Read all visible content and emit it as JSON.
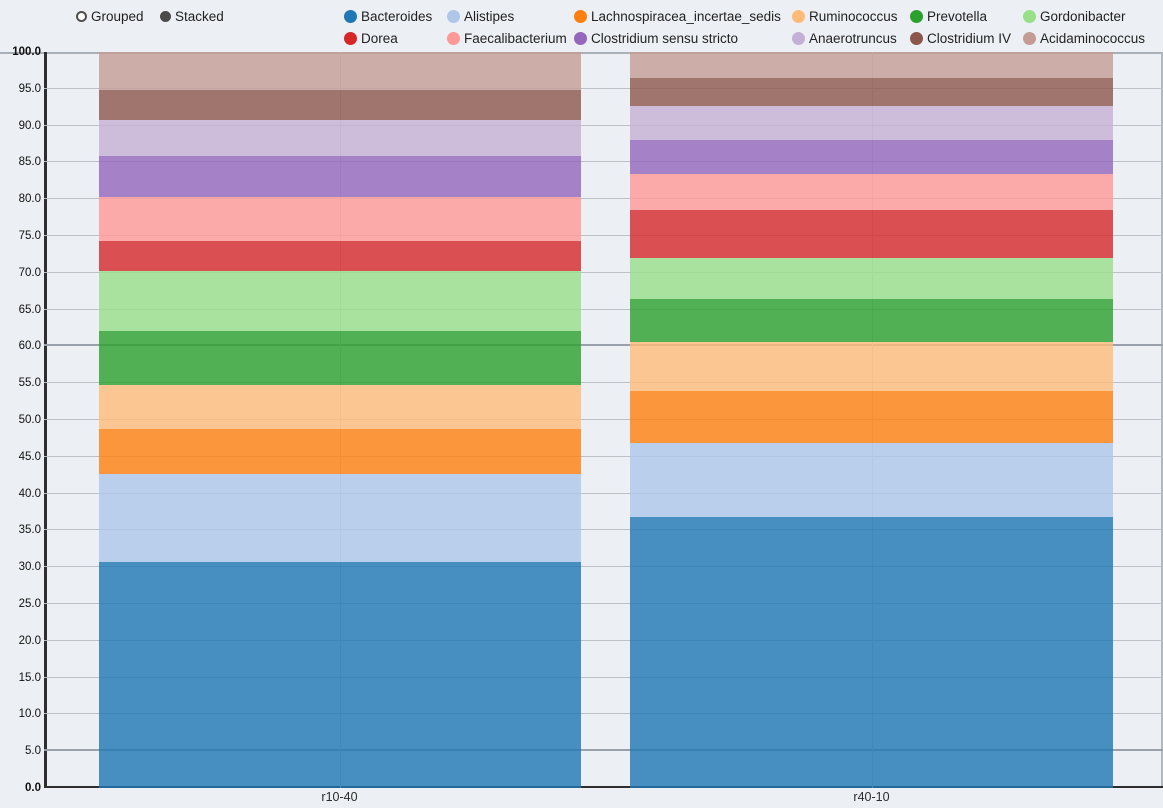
{
  "controls": {
    "grouped_label": "Grouped",
    "stacked_label": "Stacked",
    "selected_mode": "Stacked"
  },
  "chart_data": {
    "type": "bar",
    "stacked": true,
    "title": "",
    "xlabel": "",
    "ylabel": "",
    "categories": [
      "r10-40",
      "r40-10"
    ],
    "series": [
      {
        "name": "Bacteroides",
        "color": "#1f77b4",
        "values": [
          30.7,
          36.8
        ]
      },
      {
        "name": "Alistipes",
        "color": "#aec7e8",
        "values": [
          12.0,
          10.1
        ]
      },
      {
        "name": "Lachnospiracea_incertae_sedis",
        "color": "#ff7f0e",
        "values": [
          6.1,
          7.0
        ]
      },
      {
        "name": "Ruminococcus",
        "color": "#ffbb78",
        "values": [
          6.0,
          6.7
        ]
      },
      {
        "name": "Prevotella",
        "color": "#2ca02c",
        "values": [
          7.3,
          5.8
        ]
      },
      {
        "name": "Gordonibacter",
        "color": "#98df8a",
        "values": [
          8.1,
          5.6
        ]
      },
      {
        "name": "Dorea",
        "color": "#d62728",
        "values": [
          4.1,
          6.5
        ]
      },
      {
        "name": "Faecalibacterium",
        "color": "#ff9896",
        "values": [
          6.0,
          4.9
        ]
      },
      {
        "name": "Clostridium sensu stricto",
        "color": "#9467bd",
        "values": [
          5.6,
          4.7
        ]
      },
      {
        "name": "Anaerotruncus",
        "color": "#c5b0d5",
        "values": [
          4.9,
          4.5
        ]
      },
      {
        "name": "Clostridium IV",
        "color": "#8c564b",
        "values": [
          4.1,
          3.9
        ]
      },
      {
        "name": "Acidaminococcus",
        "color": "#c49c94",
        "values": [
          5.1,
          3.5
        ]
      }
    ],
    "ylim": [
      0,
      100
    ],
    "yticks": [
      0,
      5,
      10,
      15,
      20,
      25,
      30,
      35,
      40,
      45,
      50,
      55,
      60,
      65,
      70,
      75,
      80,
      85,
      90,
      95,
      100
    ],
    "ytick_decimals": 1,
    "bold_yticks": [
      0,
      100
    ],
    "emphasized_gridlines": [
      5,
      60
    ],
    "grid": true,
    "bar_opacity": 0.8,
    "legend_position": "top"
  },
  "colors": {
    "background": "#eceff3",
    "gridline": "#bcc0c7",
    "gridline_dark": "#9aa0a9",
    "axis": "#2e2e2e",
    "plot_border": "#aab0b8",
    "radio_selected": "#4a4a4a",
    "text": "#222222"
  }
}
